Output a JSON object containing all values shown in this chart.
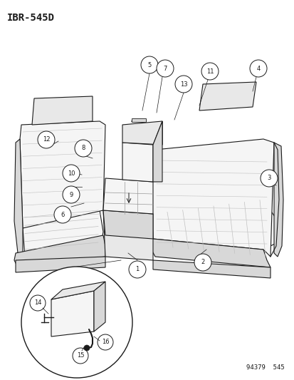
{
  "title_text": "IBR-545D",
  "footer_text": "94379  545",
  "bg_color": "#ffffff",
  "line_color": "#1a1a1a",
  "lw": 0.8,
  "callout_r": 0.018,
  "callout_fontsize": 6.0,
  "title_fontsize": 10,
  "footer_fontsize": 6.5
}
